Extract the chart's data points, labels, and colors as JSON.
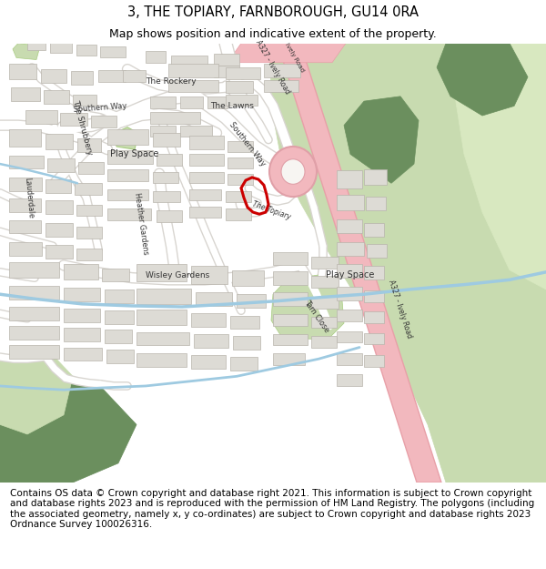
{
  "title": "3, THE TOPIARY, FARNBOROUGH, GU14 0RA",
  "subtitle": "Map shows position and indicative extent of the property.",
  "footer": "Contains OS data © Crown copyright and database right 2021. This information is subject to Crown copyright and database rights 2023 and is reproduced with the permission of HM Land Registry. The polygons (including the associated geometry, namely x, y co-ordinates) are subject to Crown copyright and database rights 2023 Ordnance Survey 100026316.",
  "title_fontsize": 10.5,
  "subtitle_fontsize": 9.0,
  "footer_fontsize": 7.5,
  "map_bg": "#f7f5f2",
  "green_light": "#c8dbb0",
  "green_light2": "#d8e8c0",
  "green_dark": "#6b8f5e",
  "road_major_color": "#f2b8be",
  "road_minor_color": "#ffffff",
  "building_color": "#dddbd5",
  "building_edge": "#b8b4ac",
  "water_color": "#9ecae1",
  "marker_color": "#cc0000",
  "border_color": "#aaaaaa",
  "fig_width": 6.0,
  "fig_height": 6.25,
  "dpi": 100
}
